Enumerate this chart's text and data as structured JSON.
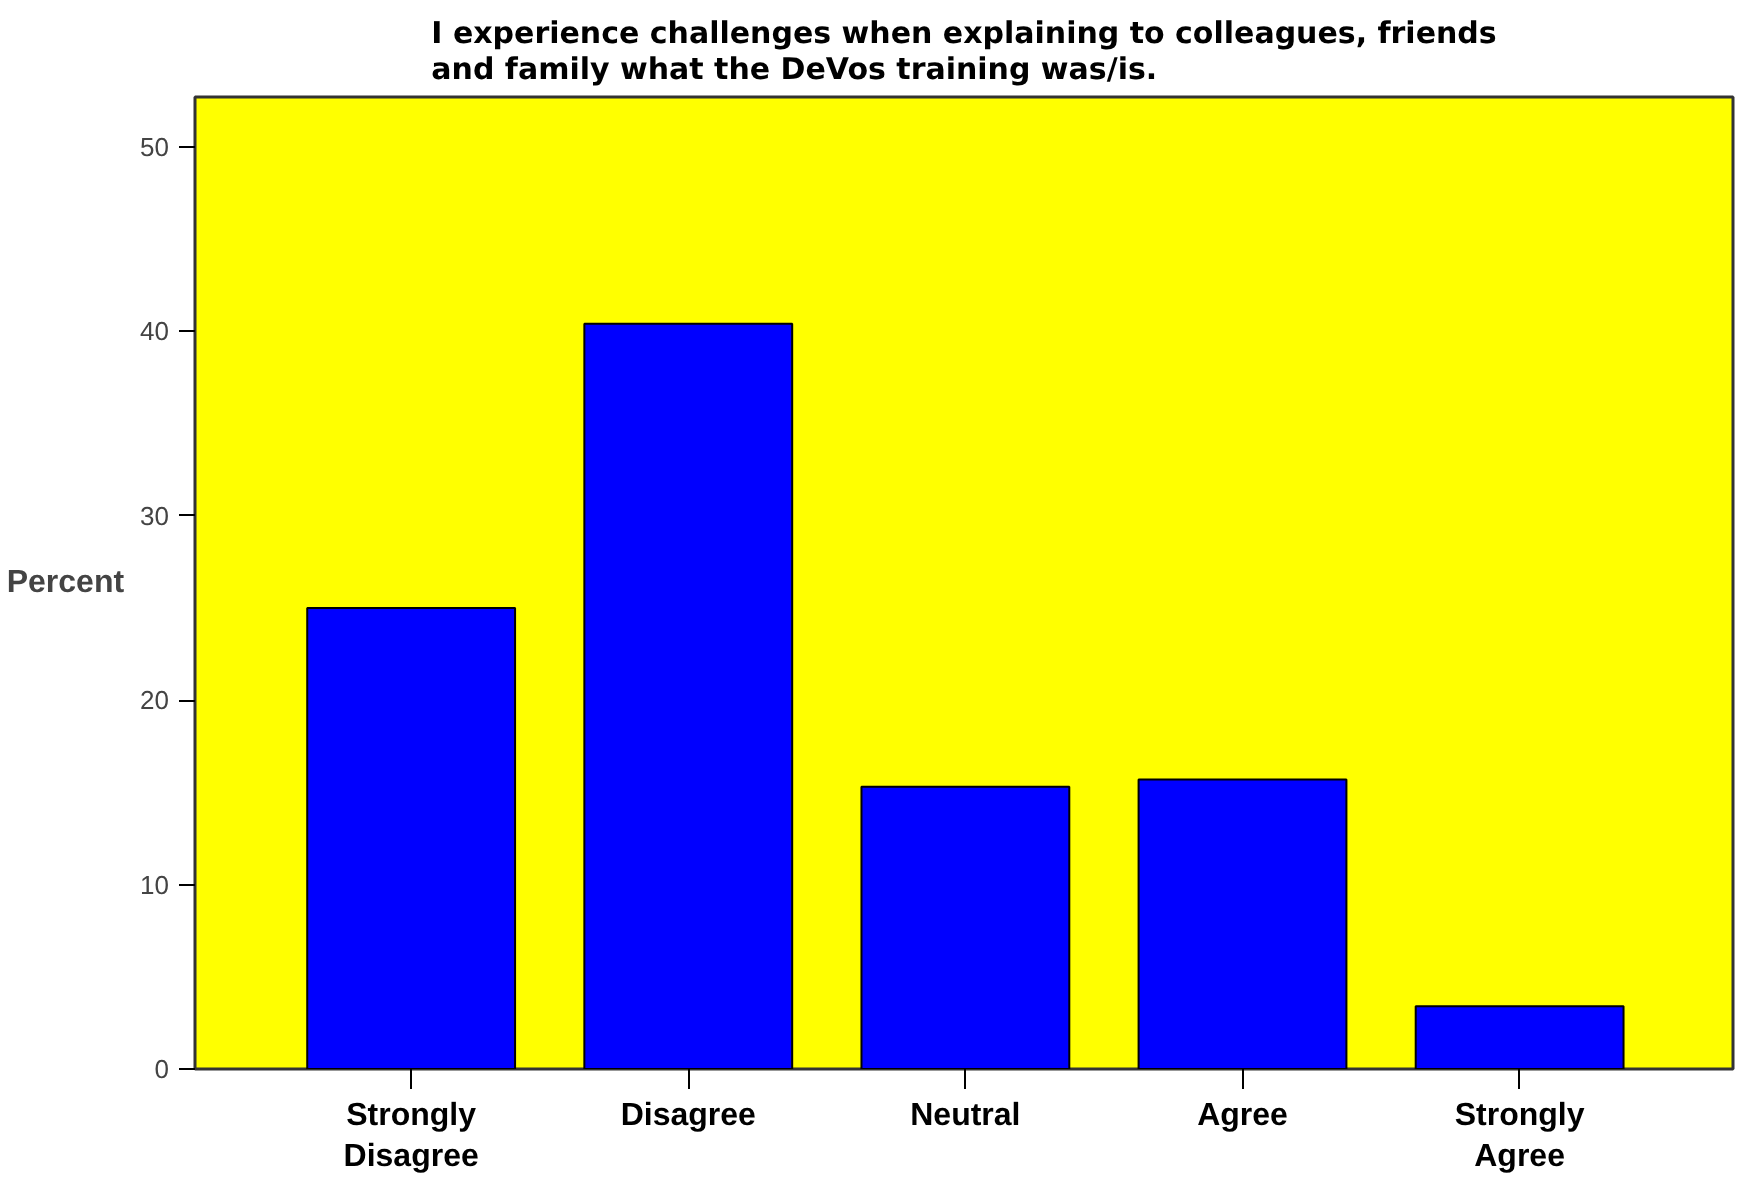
{
  "chart_data": {
    "type": "bar",
    "title": "I experience challenges when explaining to colleagues, friends and family what the DeVos training was/is.",
    "ylabel": "Percent",
    "categories": [
      "Strongly Disagree",
      "Disagree",
      "Neutral",
      "Agree",
      "Strongly Agree"
    ],
    "values": [
      25.0,
      40.4,
      15.3,
      15.7,
      3.4
    ],
    "color": "#0000ff",
    "ylim": [
      0,
      52.7
    ],
    "yticks": [
      0,
      10,
      20,
      30,
      40,
      50
    ],
    "grid": false
  }
}
